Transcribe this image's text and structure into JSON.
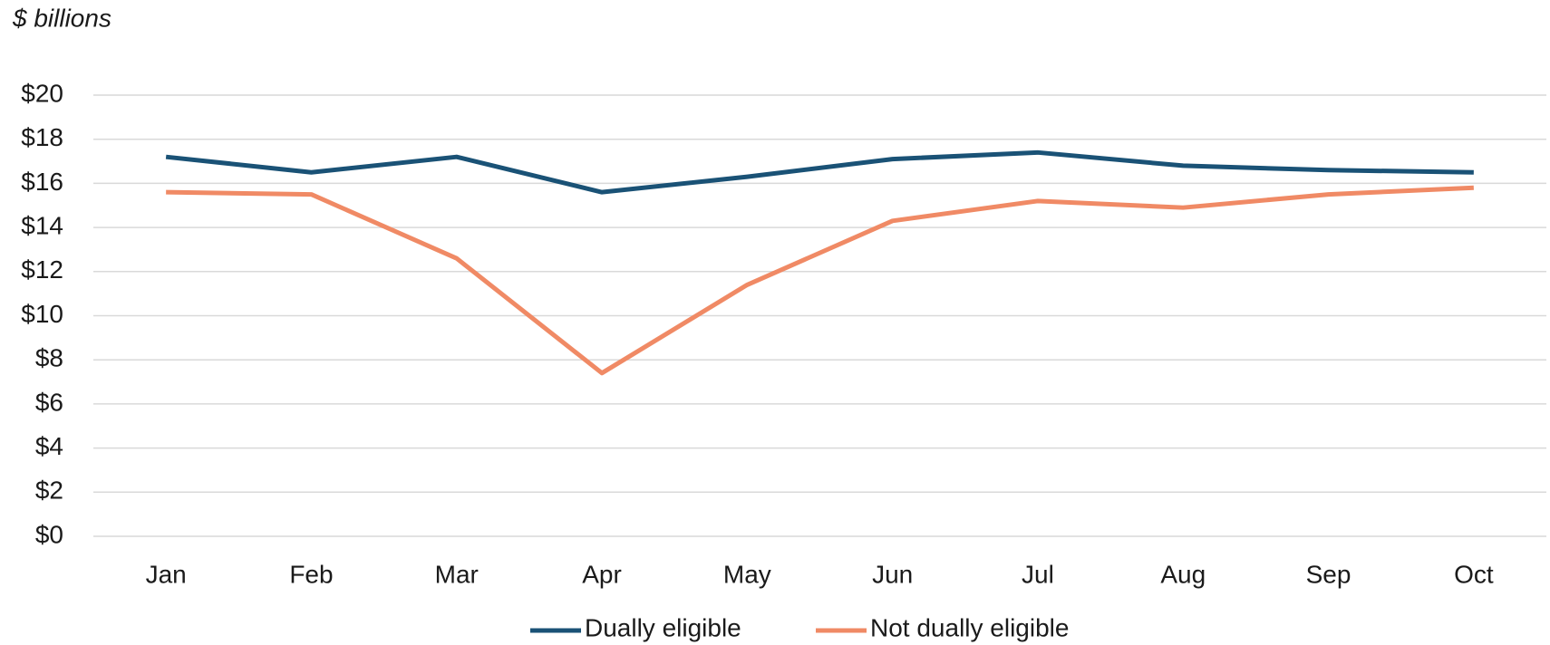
{
  "chart_data": {
    "type": "line",
    "y_axis_label": "$ billions",
    "categories": [
      "Jan",
      "Feb",
      "Mar",
      "Apr",
      "May",
      "Jun",
      "Jul",
      "Aug",
      "Sep",
      "Oct"
    ],
    "series": [
      {
        "name": "Dually eligible",
        "color": "#1a5276",
        "values": [
          17.2,
          16.5,
          17.2,
          15.6,
          16.3,
          17.1,
          17.4,
          16.8,
          16.6,
          16.5
        ]
      },
      {
        "name": "Not dually eligible",
        "color": "#f08a65",
        "values": [
          15.6,
          15.5,
          12.6,
          7.4,
          11.4,
          14.3,
          15.2,
          14.9,
          15.5,
          15.8
        ]
      }
    ],
    "ylim": [
      0,
      20
    ],
    "yticks": [
      {
        "value": 0,
        "label": "$0"
      },
      {
        "value": 2,
        "label": "$2"
      },
      {
        "value": 4,
        "label": "$4"
      },
      {
        "value": 6,
        "label": "$6"
      },
      {
        "value": 8,
        "label": "$8"
      },
      {
        "value": 10,
        "label": "$10"
      },
      {
        "value": 12,
        "label": "$12"
      },
      {
        "value": 14,
        "label": "$14"
      },
      {
        "value": 16,
        "label": "$16"
      },
      {
        "value": 18,
        "label": "$18"
      },
      {
        "value": 20,
        "label": "$20"
      }
    ],
    "grid": true,
    "legend": "bottom"
  }
}
